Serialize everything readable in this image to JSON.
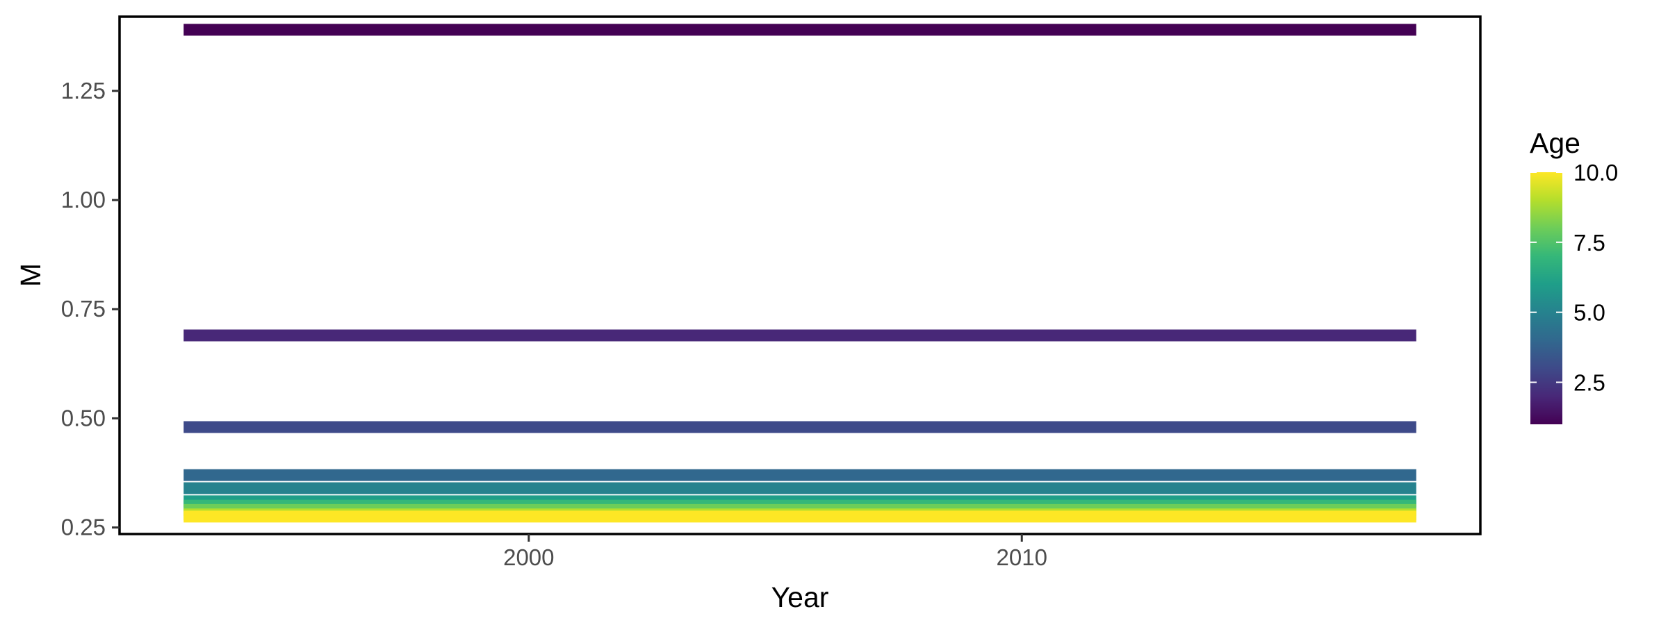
{
  "chart_data": {
    "type": "line",
    "xlabel": "Year",
    "ylabel": "M",
    "xlim": [
      1991.7,
      2019.3
    ],
    "ylim": [
      0.235,
      1.42
    ],
    "x_ticks": [
      2000,
      2010
    ],
    "x_tick_labels": [
      "2000",
      "2010"
    ],
    "y_ticks": [
      0.25,
      0.5,
      0.75,
      1.0,
      1.25
    ],
    "y_tick_labels": [
      "0.25",
      "0.50",
      "0.75",
      "1.00",
      "1.25"
    ],
    "x": [
      1993,
      2018
    ],
    "series": [
      {
        "age": 1,
        "values": [
          1.39,
          1.39
        ]
      },
      {
        "age": 2,
        "values": [
          0.69,
          0.69
        ]
      },
      {
        "age": 3,
        "values": [
          0.48,
          0.48
        ]
      },
      {
        "age": 4,
        "values": [
          0.37,
          0.37
        ]
      },
      {
        "age": 5,
        "values": [
          0.34,
          0.34
        ]
      },
      {
        "age": 6,
        "values": [
          0.31,
          0.31
        ]
      },
      {
        "age": 7,
        "values": [
          0.3,
          0.3
        ]
      },
      {
        "age": 8,
        "values": [
          0.29,
          0.29
        ]
      },
      {
        "age": 9,
        "values": [
          0.28,
          0.28
        ]
      },
      {
        "age": 10,
        "values": [
          0.275,
          0.275
        ]
      }
    ],
    "legend": {
      "title": "Age",
      "position": "right",
      "range": [
        1,
        10
      ],
      "ticks": [
        2.5,
        5.0,
        7.5,
        10.0
      ],
      "tick_labels": [
        "2.5",
        "5.0",
        "7.5",
        "10.0"
      ],
      "colors": [
        "#440154",
        "#482878",
        "#3E4A89",
        "#31688E",
        "#26828E",
        "#1F9E89",
        "#35B779",
        "#6DCD59",
        "#B4DE2C",
        "#FDE725"
      ]
    },
    "grid": false,
    "panel_border": true
  }
}
